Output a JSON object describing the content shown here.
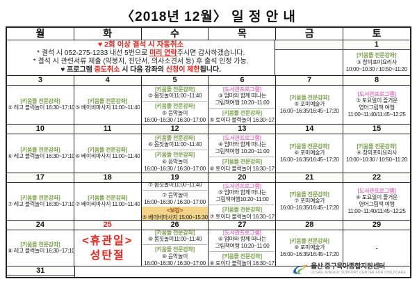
{
  "title": "〈2018년 12월〉 일 정 안 내",
  "colors": {
    "accent_red": "#e5231b",
    "tag_green": "#7ba04e",
    "tag_pink": "#e07cc2",
    "bogang_bg": "#f4d488",
    "bogang_text": "#9c4a1a"
  },
  "calendar": {
    "weekdays": [
      "월",
      "화",
      "수",
      "목",
      "금",
      "토"
    ],
    "notice": {
      "line1": "♥ 2회 이상 결석 시 자동취소",
      "line2_pre": "* 결석 시 052-275-1233 내선 5번으로 ",
      "line2_red": "미리 연락",
      "line2_post": "주시면 감사하겠습니다.",
      "line3": "* 결석 시 관련서류 제출 (약봉지, 진단서, 의사소견서 등) 후 출석 인정 가능.",
      "line4_pre": "♥ 프로그램 ",
      "line4_red1": "중도취소",
      "line4_mid": " 시 다음 강좌의 ",
      "line4_red2": "신청이 제한",
      "line4_post": "됩니다."
    },
    "notice_row": {
      "fri_date": "",
      "sat": {
        "date": "1",
        "programs": [
          {
            "type": "green",
            "tag": "[키움뜰 전문강좌]",
            "lines": [
              "③ 창의포미요리사",
              "10:00~10:30 / 10:50~11:20"
            ]
          }
        ]
      }
    },
    "weeks": [
      {
        "days": [
          {
            "date": "3",
            "programs": [
              {
                "type": "green",
                "tag": "[키움뜰 전문강좌]",
                "lines": [
                  "⑤ 레고 블럭놀이 16:30~17:10"
                ]
              }
            ]
          },
          {
            "date": "4",
            "programs": [
              {
                "type": "green",
                "tag": "[키움뜰 전문강좌]",
                "lines": [
                  "⑤ 베이비마사지 11:00~11:40"
                ]
              }
            ]
          },
          {
            "date": "5",
            "programs": [
              {
                "type": "green",
                "tag": "[키움뜰 전문강좌]",
                "lines": [
                  "⑤ 몸짓놀이11:00~11:40"
                ]
              },
              {
                "type": "green",
                "tag": "[키움뜰 전문강좌]",
                "lines": [
                  "⑤ 음악놀이",
                  "16:00~16:30 / 16:30~17:00"
                ]
              }
            ]
          },
          {
            "date": "6",
            "programs": [
              {
                "type": "pink",
                "tag": "[도서관프로그램]",
                "lines": [
                  "③ 엄마와 함께 떠나는",
                  "그림책여행 10:20~11:00"
                ]
              },
              {
                "type": "green",
                "tag": "[키움뜰 전문강좌]",
                "lines": [
                  "⑤ 토이다 블럭놀이 16:30~17:10"
                ]
              }
            ]
          },
          {
            "date": "7",
            "programs": [
              {
                "type": "green",
                "tag": "[키움뜰 전문강좌]",
                "lines": [
                  "⑤ 포미예술가",
                  "16:00~16:35/16:45~17:20"
                ]
              }
            ]
          },
          {
            "date": "8",
            "programs": [
              {
                "type": "pink",
                "tag": "[도서관프로그램]",
                "lines": [
                  "③ 토요일이 즐거운",
                  "영어그림책 여행",
                  "11:00~11:40/11:45~12:25"
                ]
              }
            ]
          }
        ]
      },
      {
        "days": [
          {
            "date": "10",
            "programs": [
              {
                "type": "green",
                "tag": "[키움뜰 전문강좌]",
                "lines": [
                  "⑥ 레고 블럭놀이 16:30~17:10"
                ]
              }
            ]
          },
          {
            "date": "11",
            "programs": [
              {
                "type": "green",
                "tag": "[키움뜰 전문강좌]",
                "lines": [
                  "⑥ 베이비마사지 11:00~11:40"
                ]
              }
            ]
          },
          {
            "date": "12",
            "programs": [
              {
                "type": "green",
                "tag": "[키움뜰 전문강좌]",
                "lines": [
                  "⑥ 몸짓놀이11:00~11:40"
                ]
              },
              {
                "type": "green",
                "tag": "[키움뜰 전문강좌]",
                "lines": [
                  "⑥ 음악놀이",
                  "16:00~16:30 / 16:30~17:00"
                ]
              }
            ]
          },
          {
            "date": "13",
            "programs": [
              {
                "type": "pink",
                "tag": "[도서관프로그램]",
                "lines": [
                  "④ 엄마와 함께 떠나는",
                  "그림책여행 10:20~11:00"
                ]
              },
              {
                "type": "green",
                "tag": "[키움뜰 전문강좌]",
                "lines": [
                  "⑥ 토이다 블럭놀이 16:30~17:10"
                ]
              }
            ]
          },
          {
            "date": "14",
            "programs": [
              {
                "type": "green",
                "tag": "[키움뜰 전문강좌]",
                "lines": [
                  "⑥ 포미예술가",
                  "16:00~16:35/16:45~17:20"
                ]
              }
            ]
          },
          {
            "date": "15",
            "programs": [
              {
                "type": "green",
                "tag": "[키움뜰 전문강좌]",
                "lines": [
                  "④ 창의포미요리사",
                  "10:00~10:30 / 10:50~11:20"
                ]
              }
            ]
          }
        ]
      },
      {
        "days": [
          {
            "date": "17",
            "programs": [
              {
                "type": "green",
                "tag": "[키움뜰 전문강좌]",
                "lines": [
                  "⑦ 레고 블럭놀이 16:30~17:10"
                ]
              }
            ]
          },
          {
            "date": "18",
            "programs": [
              {
                "type": "green",
                "tag": "[키움뜰 전문강좌]",
                "lines": [
                  "⑦ 베이비마사지 11:00~11:40"
                ]
              }
            ]
          },
          {
            "date": "19",
            "programs": [
              {
                "type": "plain",
                "lines": [
                  "⑦ 몸짓놀이11:00~11:40"
                ]
              },
              {
                "type": "plain",
                "lines": [
                  "⑦ 음악놀이",
                  "16:00~16:30 / 16:30~17:00"
                ]
              },
              {
                "type": "bogang",
                "lines": [
                  "<보강>",
                  "⑤ 베이비마사지 15:00~15:30"
                ]
              }
            ]
          },
          {
            "date": "20",
            "programs": [
              {
                "type": "pink",
                "tag": "[도서관프로그램]",
                "lines": [
                  "⑤ 엄마와 함께 떠나는",
                  "그림책여행10:20~11:00"
                ]
              },
              {
                "type": "green",
                "tag": "[키움뜰 전문강좌]",
                "lines": [
                  "⑦ 토이다 블럭놀이 16:30~17:10"
                ]
              }
            ]
          },
          {
            "date": "21",
            "programs": [
              {
                "type": "green",
                "tag": "[키움뜰 전문강좌]",
                "lines": [
                  "⑦ 포미예술가",
                  "16:00~16:35/16:45~17:20"
                ]
              }
            ]
          },
          {
            "date": "22",
            "programs": [
              {
                "type": "pink",
                "tag": "[도서관프로그램]",
                "lines": [
                  "④ 토요일이 즐거운",
                  "영어그림책 여행",
                  "11:00~11:40/11:45~12:25"
                ]
              }
            ]
          }
        ]
      },
      {
        "days": [
          {
            "date": "24",
            "programs": [
              {
                "type": "green",
                "tag": "[키움뜰 전문강좌]",
                "lines": [
                  "⑧ 레고 블럭놀이 16:30~17:10"
                ]
              }
            ]
          },
          {
            "date": "25",
            "programs": [
              {
                "type": "holiday",
                "lines": [
                  "<휴관일>",
                  "성탄절"
                ]
              }
            ]
          },
          {
            "date": "26",
            "programs": [
              {
                "type": "green",
                "tag": "[키움뜰 전문강좌]",
                "lines": [
                  "⑧ 몸짓놀이11:00~11:40"
                ]
              },
              {
                "type": "green",
                "tag": "[키움뜰 전문강좌]",
                "lines": [
                  "⑧ 음악놀이",
                  "16:00~16:30 / 16:30~17:00"
                ]
              }
            ]
          },
          {
            "date": "27",
            "programs": [
              {
                "type": "pink",
                "tag": "[도서관프로그램]",
                "lines": [
                  "⑥ 엄마와 함께 떠나는",
                  "그림책여행 10:20~11:00"
                ]
              },
              {
                "type": "green",
                "tag": "[키움뜰 전문강좌]",
                "lines": [
                  "⑧ 토이다 블럭놀이 16:30~17:10"
                ]
              }
            ]
          },
          {
            "date": "28",
            "programs": [
              {
                "type": "green",
                "tag": "[키움뜰 전문강좌]",
                "lines": [
                  "⑧ 포미예술가",
                  "16:00~16:35/16:45~17:20"
                ]
              }
            ]
          },
          {
            "date": "29",
            "programs": [
              {
                "type": "dash",
                "lines": [
                  "-"
                ]
              }
            ]
          }
        ]
      }
    ],
    "last_row": {
      "mon": {
        "date": "31",
        "programs": [
          {
            "type": "dash",
            "lines": [
              "-"
            ]
          }
        ]
      }
    }
  },
  "footer": {
    "name": "울산 중구육아종합지원센터",
    "sub": "ULSAN JUNGGU SUPPORT CENTER FOR CHILDCARE"
  }
}
